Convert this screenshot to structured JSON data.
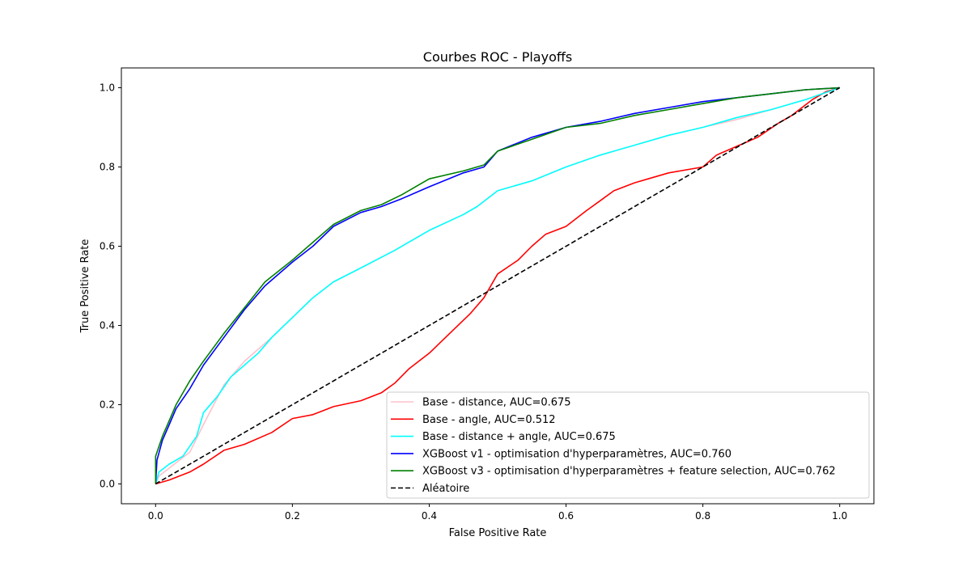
{
  "chart_data": {
    "type": "line",
    "title": "Courbes ROC - Playoffs",
    "xlabel": "False Positive Rate",
    "ylabel": "True Positive Rate",
    "xlim": [
      -0.05,
      1.05
    ],
    "ylim": [
      -0.05,
      1.05
    ],
    "xticks": [
      "0.0",
      "0.2",
      "0.4",
      "0.6",
      "0.8",
      "1.0"
    ],
    "yticks": [
      "0.0",
      "0.2",
      "0.4",
      "0.6",
      "0.8",
      "1.0"
    ],
    "grid": false,
    "legend_position": "lower-right",
    "series": [
      {
        "name": "Base - distance, AUC=0.675",
        "color": "#ffc0cb",
        "dashed": false,
        "points": [
          [
            0,
            0
          ],
          [
            0.005,
            0.02
          ],
          [
            0.02,
            0.04
          ],
          [
            0.05,
            0.08
          ],
          [
            0.07,
            0.15
          ],
          [
            0.1,
            0.25
          ],
          [
            0.13,
            0.31
          ],
          [
            0.15,
            0.34
          ],
          [
            0.17,
            0.37
          ],
          [
            0.2,
            0.42
          ],
          [
            0.23,
            0.47
          ],
          [
            0.26,
            0.51
          ],
          [
            0.3,
            0.545
          ],
          [
            0.35,
            0.59
          ],
          [
            0.4,
            0.64
          ],
          [
            0.45,
            0.68
          ],
          [
            0.47,
            0.7
          ],
          [
            0.5,
            0.74
          ],
          [
            0.55,
            0.765
          ],
          [
            0.6,
            0.8
          ],
          [
            0.65,
            0.83
          ],
          [
            0.7,
            0.855
          ],
          [
            0.75,
            0.88
          ],
          [
            0.8,
            0.9
          ],
          [
            0.85,
            0.92
          ],
          [
            0.9,
            0.945
          ],
          [
            0.95,
            0.97
          ],
          [
            1,
            1
          ]
        ]
      },
      {
        "name": "Base - angle, AUC=0.512",
        "color": "#ff0000",
        "dashed": false,
        "points": [
          [
            0,
            0
          ],
          [
            0.02,
            0.01
          ],
          [
            0.05,
            0.03
          ],
          [
            0.07,
            0.05
          ],
          [
            0.1,
            0.085
          ],
          [
            0.13,
            0.1
          ],
          [
            0.17,
            0.13
          ],
          [
            0.2,
            0.165
          ],
          [
            0.23,
            0.175
          ],
          [
            0.26,
            0.195
          ],
          [
            0.3,
            0.21
          ],
          [
            0.33,
            0.23
          ],
          [
            0.35,
            0.255
          ],
          [
            0.37,
            0.29
          ],
          [
            0.4,
            0.33
          ],
          [
            0.43,
            0.38
          ],
          [
            0.46,
            0.43
          ],
          [
            0.48,
            0.47
          ],
          [
            0.5,
            0.53
          ],
          [
            0.53,
            0.565
          ],
          [
            0.55,
            0.6
          ],
          [
            0.57,
            0.63
          ],
          [
            0.6,
            0.65
          ],
          [
            0.63,
            0.69
          ],
          [
            0.65,
            0.715
          ],
          [
            0.67,
            0.74
          ],
          [
            0.7,
            0.76
          ],
          [
            0.72,
            0.77
          ],
          [
            0.75,
            0.785
          ],
          [
            0.8,
            0.8
          ],
          [
            0.82,
            0.83
          ],
          [
            0.86,
            0.86
          ],
          [
            0.88,
            0.875
          ],
          [
            0.91,
            0.91
          ],
          [
            0.93,
            0.93
          ],
          [
            0.96,
            0.97
          ],
          [
            0.98,
            0.99
          ],
          [
            1,
            1
          ]
        ]
      },
      {
        "name": "Base - distance + angle, AUC=0.675",
        "color": "#00ffff",
        "dashed": false,
        "points": [
          [
            0,
            0
          ],
          [
            0.005,
            0.03
          ],
          [
            0.02,
            0.05
          ],
          [
            0.04,
            0.07
          ],
          [
            0.06,
            0.12
          ],
          [
            0.07,
            0.18
          ],
          [
            0.09,
            0.22
          ],
          [
            0.11,
            0.27
          ],
          [
            0.13,
            0.3
          ],
          [
            0.15,
            0.33
          ],
          [
            0.17,
            0.37
          ],
          [
            0.2,
            0.42
          ],
          [
            0.23,
            0.47
          ],
          [
            0.26,
            0.51
          ],
          [
            0.3,
            0.545
          ],
          [
            0.35,
            0.59
          ],
          [
            0.4,
            0.64
          ],
          [
            0.45,
            0.68
          ],
          [
            0.47,
            0.7
          ],
          [
            0.5,
            0.74
          ],
          [
            0.55,
            0.765
          ],
          [
            0.6,
            0.8
          ],
          [
            0.65,
            0.83
          ],
          [
            0.7,
            0.855
          ],
          [
            0.75,
            0.88
          ],
          [
            0.8,
            0.9
          ],
          [
            0.85,
            0.925
          ],
          [
            0.9,
            0.945
          ],
          [
            0.95,
            0.97
          ],
          [
            1,
            1
          ]
        ]
      },
      {
        "name": "XGBoost v1 - optimisation d'hyperparamètres, AUC=0.760",
        "color": "#0000ff",
        "dashed": false,
        "points": [
          [
            0,
            0
          ],
          [
            0.002,
            0.06
          ],
          [
            0.01,
            0.11
          ],
          [
            0.02,
            0.15
          ],
          [
            0.03,
            0.19
          ],
          [
            0.05,
            0.24
          ],
          [
            0.07,
            0.3
          ],
          [
            0.1,
            0.37
          ],
          [
            0.13,
            0.44
          ],
          [
            0.16,
            0.5
          ],
          [
            0.2,
            0.56
          ],
          [
            0.23,
            0.6
          ],
          [
            0.26,
            0.65
          ],
          [
            0.3,
            0.685
          ],
          [
            0.33,
            0.7
          ],
          [
            0.36,
            0.72
          ],
          [
            0.4,
            0.75
          ],
          [
            0.45,
            0.785
          ],
          [
            0.48,
            0.8
          ],
          [
            0.5,
            0.84
          ],
          [
            0.55,
            0.875
          ],
          [
            0.6,
            0.9
          ],
          [
            0.65,
            0.915
          ],
          [
            0.7,
            0.935
          ],
          [
            0.75,
            0.95
          ],
          [
            0.8,
            0.965
          ],
          [
            0.85,
            0.975
          ],
          [
            0.9,
            0.985
          ],
          [
            0.95,
            0.995
          ],
          [
            1,
            1
          ]
        ]
      },
      {
        "name": "XGBoost v3 - optimisation d'hyperparamètres + feature selection, AUC=0.762",
        "color": "#008000",
        "dashed": false,
        "points": [
          [
            0,
            0
          ],
          [
            0,
            0.07
          ],
          [
            0.01,
            0.12
          ],
          [
            0.02,
            0.16
          ],
          [
            0.03,
            0.2
          ],
          [
            0.05,
            0.26
          ],
          [
            0.07,
            0.31
          ],
          [
            0.1,
            0.38
          ],
          [
            0.13,
            0.445
          ],
          [
            0.16,
            0.51
          ],
          [
            0.2,
            0.565
          ],
          [
            0.23,
            0.61
          ],
          [
            0.26,
            0.655
          ],
          [
            0.3,
            0.69
          ],
          [
            0.33,
            0.705
          ],
          [
            0.36,
            0.73
          ],
          [
            0.4,
            0.77
          ],
          [
            0.45,
            0.79
          ],
          [
            0.48,
            0.805
          ],
          [
            0.5,
            0.84
          ],
          [
            0.55,
            0.87
          ],
          [
            0.6,
            0.9
          ],
          [
            0.65,
            0.91
          ],
          [
            0.7,
            0.93
          ],
          [
            0.75,
            0.945
          ],
          [
            0.8,
            0.96
          ],
          [
            0.85,
            0.975
          ],
          [
            0.9,
            0.985
          ],
          [
            0.95,
            0.995
          ],
          [
            1,
            1
          ]
        ]
      },
      {
        "name": "Aléatoire",
        "color": "#000000",
        "dashed": true,
        "points": [
          [
            0,
            0
          ],
          [
            1,
            1
          ]
        ]
      }
    ]
  }
}
